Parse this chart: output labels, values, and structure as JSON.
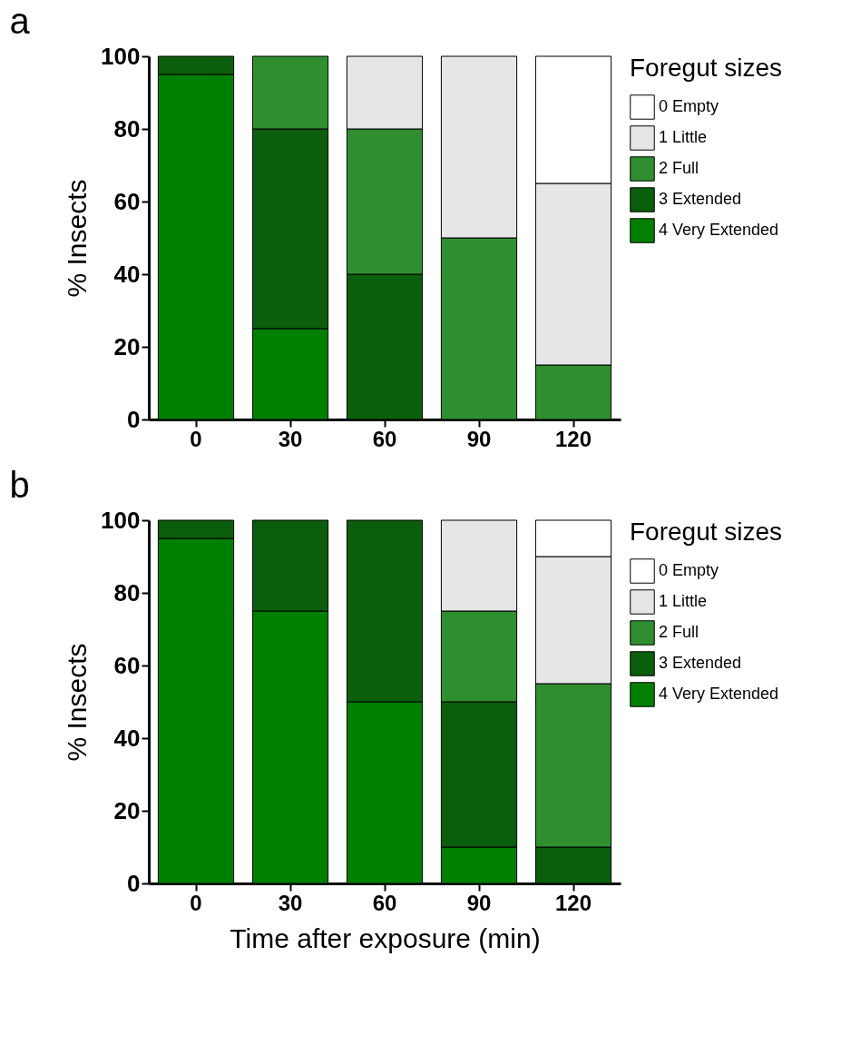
{
  "chart_data": [
    {
      "type": "bar",
      "title": "a",
      "ylabel": "% Insects",
      "legend_title": "Foregut sizes",
      "legend": "right",
      "stacked": true,
      "categories": [
        "0",
        "30",
        "60",
        "90",
        "120"
      ],
      "ylim": [
        0,
        100
      ],
      "yticks": [
        0,
        20,
        40,
        60,
        80,
        100
      ],
      "grid": false,
      "series": [
        {
          "name": "4 Very Extended",
          "color": "#008000",
          "values": [
            95,
            25,
            0,
            0,
            0
          ]
        },
        {
          "name": "3 Extended",
          "color": "#0b5e0b",
          "values": [
            5,
            55,
            40,
            0,
            0
          ]
        },
        {
          "name": "2 Full",
          "color": "#2f8f2f",
          "values": [
            0,
            20,
            40,
            50,
            15
          ]
        },
        {
          "name": "1 Little",
          "color": "#e6e6e6",
          "values": [
            0,
            0,
            20,
            50,
            50
          ]
        },
        {
          "name": "0 Empty",
          "color": "#ffffff",
          "values": [
            0,
            0,
            0,
            0,
            35
          ]
        }
      ]
    },
    {
      "type": "bar",
      "title": "b",
      "ylabel": "% Insects",
      "xlabel": "Time after exposure (min)",
      "legend_title": "Foregut sizes",
      "legend": "right",
      "stacked": true,
      "categories": [
        "0",
        "30",
        "60",
        "90",
        "120"
      ],
      "ylim": [
        0,
        100
      ],
      "yticks": [
        0,
        20,
        40,
        60,
        80,
        100
      ],
      "grid": false,
      "series": [
        {
          "name": "4 Very Extended",
          "color": "#008000",
          "values": [
            95,
            75,
            50,
            10,
            0
          ]
        },
        {
          "name": "3 Extended",
          "color": "#0b5e0b",
          "values": [
            5,
            25,
            50,
            40,
            10
          ]
        },
        {
          "name": "2 Full",
          "color": "#2f8f2f",
          "values": [
            0,
            0,
            0,
            25,
            45
          ]
        },
        {
          "name": "1 Little",
          "color": "#e6e6e6",
          "values": [
            0,
            0,
            0,
            25,
            35
          ]
        },
        {
          "name": "0 Empty",
          "color": "#ffffff",
          "values": [
            0,
            0,
            0,
            0,
            10
          ]
        }
      ]
    }
  ]
}
